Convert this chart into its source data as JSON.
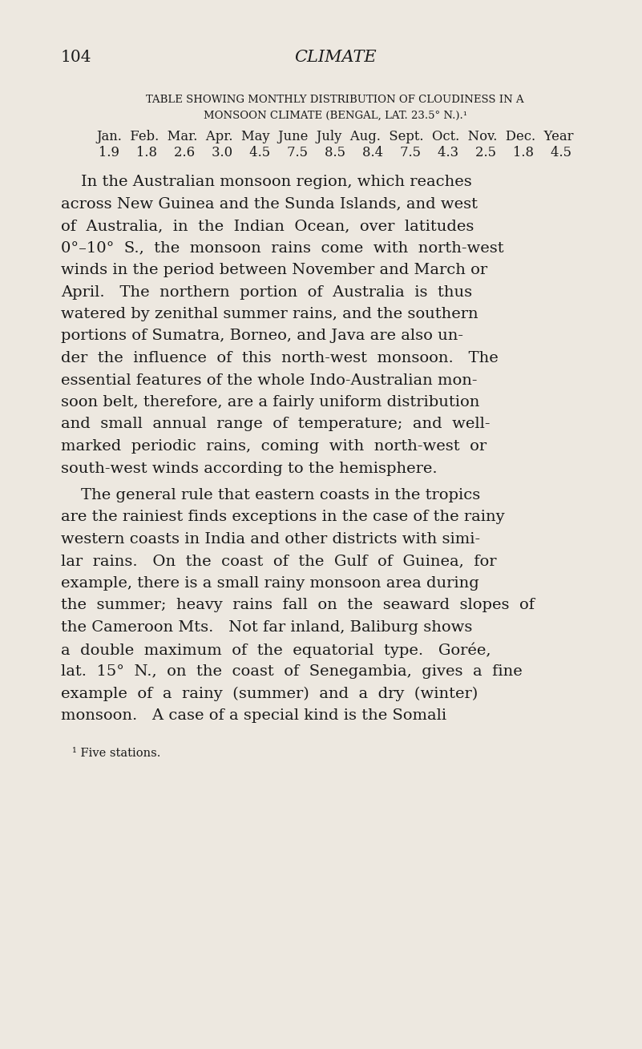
{
  "background_color": "#ede8e0",
  "text_color": "#1a1a1a",
  "page_number": "104",
  "page_title": "CLIMATE",
  "table_heading_line1": "TABLE SHOWING MONTHLY DISTRIBUTION OF CLOUDINESS IN A",
  "table_heading_line2": "MONSOON CLIMATE (BENGAL, LAT. 23.5° N.).¹",
  "table_months": "Jan.  Feb.  Mar.  Apr.  May  June  July  Aug.  Sept.  Oct.  Nov.  Dec.  Year",
  "table_values": "1.9    1.8    2.6    3.0    4.5    7.5    8.5    8.4    7.5    4.3    2.5    1.8    4.5",
  "footnote": "¹ Five stations.",
  "p1_lines": [
    "    In the Australian monsoon region, which reaches",
    "across New Guinea and the Sunda Islands, and west",
    "of  Australia,  in  the  Indian  Ocean,  over  latitudes",
    "0°–10°  S.,  the  monsoon  rains  come  with  north-west",
    "winds in the period between November and March or",
    "April.   The  northern  portion  of  Australia  is  thus",
    "watered by zenithal summer rains, and the southern",
    "portions of Sumatra, Borneo, and Java are also un-",
    "der  the  influence  of  this  north-west  monsoon.   The",
    "essential features of the whole Indo-Australian mon-",
    "soon belt, therefore, are a fairly uniform distribution",
    "and  small  annual  range  of  temperature;  and  well-",
    "marked  periodic  rains,  coming  with  north-west  or",
    "south-west winds according to the hemisphere."
  ],
  "p2_lines": [
    "    The general rule that eastern coasts in the tropics",
    "are the rainiest finds exceptions in the case of the rainy",
    "western coasts in India and other districts with simi-",
    "lar  rains.   On  the  coast  of  the  Gulf  of  Guinea,  for",
    "example, there is a small rainy monsoon area during",
    "the  summer;  heavy  rains  fall  on  the  seaward  slopes  of",
    "the Cameroon Mts.   Not far inland, Baliburg shows",
    "a  double  maximum  of  the  equatorial  type.   Gorée,",
    "lat.  15°  N.,  on  the  coast  of  Senegambia,  gives  a  fine",
    "example  of  a  rainy  (summer)  and  a  dry  (winter)",
    "monsoon.   A case of a special kind is the Somali"
  ]
}
